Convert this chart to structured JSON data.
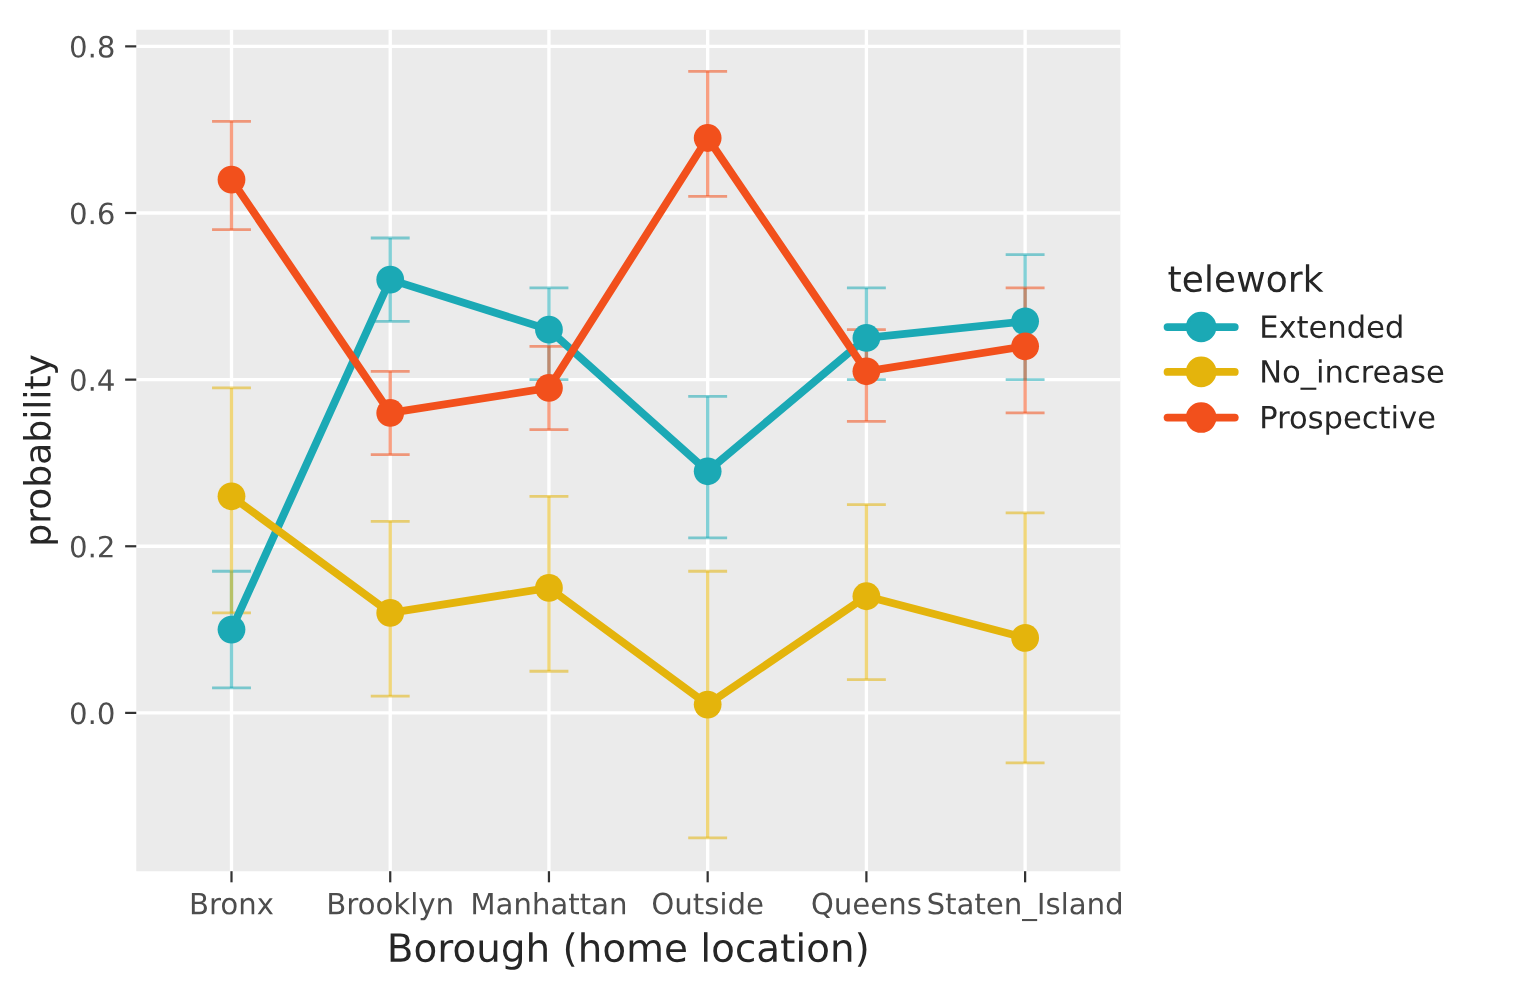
{
  "chart_data": {
    "type": "line",
    "xlabel": "Borough (home location)",
    "ylabel": "probability",
    "legend_title": "telework",
    "categories": [
      "Bronx",
      "Brooklyn",
      "Manhattan",
      "Outside",
      "Queens",
      "Staten_Island"
    ],
    "ylim": [
      -0.19,
      0.82
    ],
    "yticks": [
      {
        "value": 0,
        "label": "0.0"
      },
      0.2,
      0.4,
      0.6,
      0.8
    ],
    "grid": true,
    "legend": "right",
    "marker": "circle",
    "line_style": "solid",
    "series": [
      {
        "name": "Extended",
        "color": "#1ba9b5",
        "values": [
          0.1,
          0.52,
          0.46,
          0.29,
          0.45,
          0.47
        ],
        "errors": [
          [
            0.03,
            0.17
          ],
          [
            0.47,
            0.57
          ],
          [
            0.4,
            0.51
          ],
          [
            0.21,
            0.38
          ],
          [
            0.4,
            0.51
          ],
          [
            0.4,
            0.55
          ]
        ]
      },
      {
        "name": "No_increase",
        "color": "#e4b40c",
        "values": [
          0.26,
          0.12,
          0.15,
          0.01,
          0.14,
          0.09
        ],
        "errors": [
          [
            0.12,
            0.39
          ],
          [
            0.02,
            0.23
          ],
          [
            0.05,
            0.26
          ],
          [
            -0.15,
            0.17
          ],
          [
            0.04,
            0.25
          ],
          [
            -0.06,
            0.24
          ]
        ]
      },
      {
        "name": "Prospective",
        "color": "#f2501c",
        "values": [
          0.64,
          0.36,
          0.39,
          0.69,
          0.41,
          0.44
        ],
        "errors": [
          [
            0.58,
            0.71
          ],
          [
            0.31,
            0.41
          ],
          [
            0.34,
            0.44
          ],
          [
            0.62,
            0.77
          ],
          [
            0.35,
            0.46
          ],
          [
            0.36,
            0.51
          ]
        ]
      }
    ]
  }
}
